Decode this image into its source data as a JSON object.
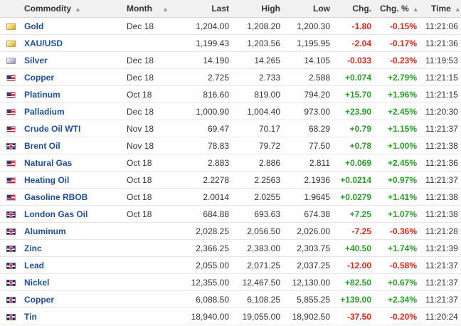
{
  "headers": {
    "commodity": "Commodity",
    "month": "Month",
    "last": "Last",
    "high": "High",
    "low": "Low",
    "chg": "Chg.",
    "chg_pct": "Chg. %",
    "time": "Time"
  },
  "icons": {
    "sort": "sort-icon",
    "clock": "clock-icon",
    "flags": [
      "gold-flag-icon",
      "silver-flag-icon",
      "us-flag-icon",
      "uk-flag-icon"
    ]
  },
  "colors": {
    "positive": "#2a9d2a",
    "negative": "#e0261b",
    "link": "#1f4e99",
    "clock": "#3bb23b"
  },
  "rows": [
    {
      "flag": "gold",
      "name": "Gold",
      "month": "Dec 18",
      "last": "1,204.00",
      "high": "1,208.20",
      "low": "1,200.30",
      "chg": "-1.80",
      "chg_pct": "-0.15%",
      "time": "11:21:06",
      "dir": "neg"
    },
    {
      "flag": "gold",
      "name": "XAU/USD",
      "month": "",
      "last": "1,199.43",
      "high": "1,203.56",
      "low": "1,195.95",
      "chg": "-2.04",
      "chg_pct": "-0.17%",
      "time": "11:21:36",
      "dir": "neg"
    },
    {
      "flag": "silver",
      "name": "Silver",
      "month": "Dec 18",
      "last": "14.190",
      "high": "14.265",
      "low": "14.105",
      "chg": "-0.033",
      "chg_pct": "-0.23%",
      "time": "11:19:53",
      "dir": "neg"
    },
    {
      "flag": "us",
      "name": "Copper",
      "month": "Dec 18",
      "last": "2.725",
      "high": "2.733",
      "low": "2.588",
      "chg": "+0.074",
      "chg_pct": "+2.79%",
      "time": "11:21:15",
      "dir": "pos"
    },
    {
      "flag": "us",
      "name": "Platinum",
      "month": "Oct 18",
      "last": "816.60",
      "high": "819.00",
      "low": "794.20",
      "chg": "+15.70",
      "chg_pct": "+1.96%",
      "time": "11:21:15",
      "dir": "pos"
    },
    {
      "flag": "us",
      "name": "Palladium",
      "month": "Dec 18",
      "last": "1,000.90",
      "high": "1,004.40",
      "low": "973.00",
      "chg": "+23.90",
      "chg_pct": "+2.45%",
      "time": "11:20:30",
      "dir": "pos"
    },
    {
      "flag": "us",
      "name": "Crude Oil WTI",
      "month": "Nov 18",
      "last": "69.47",
      "high": "70.17",
      "low": "68.29",
      "chg": "+0.79",
      "chg_pct": "+1.15%",
      "time": "11:21:37",
      "dir": "pos"
    },
    {
      "flag": "uk",
      "name": "Brent Oil",
      "month": "Nov 18",
      "last": "78.83",
      "high": "79.72",
      "low": "77.50",
      "chg": "+0.78",
      "chg_pct": "+1.00%",
      "time": "11:21:38",
      "dir": "pos"
    },
    {
      "flag": "us",
      "name": "Natural Gas",
      "month": "Oct 18",
      "last": "2.883",
      "high": "2.886",
      "low": "2.811",
      "chg": "+0.069",
      "chg_pct": "+2.45%",
      "time": "11:21:36",
      "dir": "pos"
    },
    {
      "flag": "us",
      "name": "Heating Oil",
      "month": "Oct 18",
      "last": "2.2278",
      "high": "2.2563",
      "low": "2.1936",
      "chg": "+0.0214",
      "chg_pct": "+0.97%",
      "time": "11:21:37",
      "dir": "pos"
    },
    {
      "flag": "us",
      "name": "Gasoline RBOB",
      "month": "Oct 18",
      "last": "2.0014",
      "high": "2.0255",
      "low": "1.9645",
      "chg": "+0.0279",
      "chg_pct": "+1.41%",
      "time": "11:21:38",
      "dir": "pos"
    },
    {
      "flag": "uk",
      "name": "London Gas Oil",
      "month": "Oct 18",
      "last": "684.88",
      "high": "693.63",
      "low": "674.38",
      "chg": "+7.25",
      "chg_pct": "+1.07%",
      "time": "11:21:38",
      "dir": "pos"
    },
    {
      "flag": "uk",
      "name": "Aluminum",
      "month": "",
      "last": "2,028.25",
      "high": "2,056.50",
      "low": "2,026.00",
      "chg": "-7.25",
      "chg_pct": "-0.36%",
      "time": "11:21:28",
      "dir": "neg"
    },
    {
      "flag": "uk",
      "name": "Zinc",
      "month": "",
      "last": "2,366.25",
      "high": "2,383.00",
      "low": "2,303.75",
      "chg": "+40.50",
      "chg_pct": "+1.74%",
      "time": "11:21:39",
      "dir": "pos"
    },
    {
      "flag": "uk",
      "name": "Lead",
      "month": "",
      "last": "2,055.00",
      "high": "2,071.25",
      "low": "2,037.25",
      "chg": "-12.00",
      "chg_pct": "-0.58%",
      "time": "11:21:37",
      "dir": "neg"
    },
    {
      "flag": "uk",
      "name": "Nickel",
      "month": "",
      "last": "12,355.00",
      "high": "12,467.50",
      "low": "12,130.00",
      "chg": "+82.50",
      "chg_pct": "+0.67%",
      "time": "11:21:37",
      "dir": "pos"
    },
    {
      "flag": "uk",
      "name": "Copper",
      "month": "",
      "last": "6,088.50",
      "high": "6,108.25",
      "low": "5,855.25",
      "chg": "+139.00",
      "chg_pct": "+2.34%",
      "time": "11:21:37",
      "dir": "pos"
    },
    {
      "flag": "uk",
      "name": "Tin",
      "month": "",
      "last": "18,940.00",
      "high": "19,055.00",
      "low": "18,902.50",
      "chg": "-37.50",
      "chg_pct": "-0.20%",
      "time": "11:20:24",
      "dir": "neg"
    }
  ]
}
